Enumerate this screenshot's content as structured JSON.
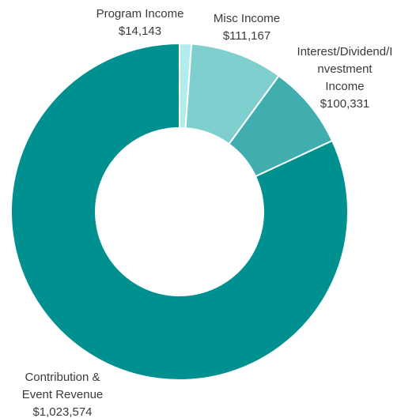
{
  "chart_data": {
    "type": "pie",
    "donut": true,
    "title": "",
    "legend": "none",
    "slices": [
      {
        "name": "Program Income",
        "label_lines": [
          "Program Income"
        ],
        "value_label": "$14,143",
        "value": 14143,
        "color": "#b2ecec"
      },
      {
        "name": "Misc Income",
        "label_lines": [
          "Misc Income"
        ],
        "value_label": "$111,167",
        "value": 111167,
        "color": "#7fcfcf"
      },
      {
        "name": "Interest/Dividend/Investment Income",
        "label_lines": [
          "Interest/Dividend/I",
          "nvestment",
          "Income"
        ],
        "value_label": "$100,331",
        "value": 100331,
        "color": "#40aeae"
      },
      {
        "name": "Contribution & Event Revenue",
        "label_lines": [
          "Contribution &",
          "Event Revenue"
        ],
        "value_label": "$1,023,574",
        "value": 1023574,
        "color": "#009090"
      }
    ]
  }
}
